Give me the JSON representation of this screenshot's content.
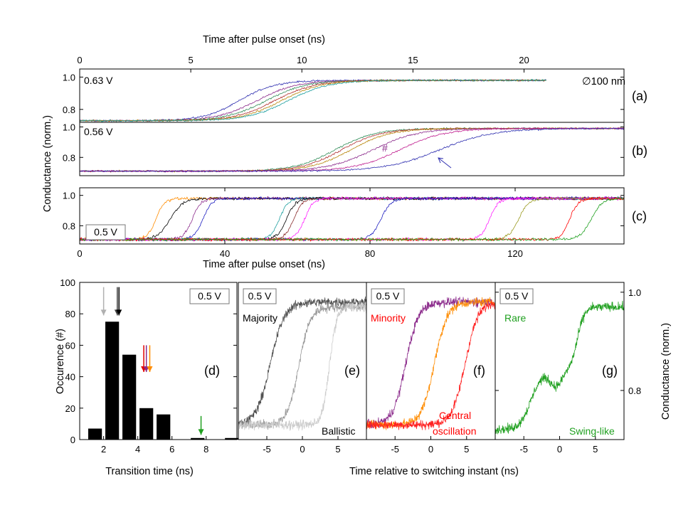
{
  "figure": {
    "top_axis_title": "Time after pulse onset (ns)",
    "shared_ylabel": "Conductance (norm.)",
    "right_ylabel": "Conductance (norm.)",
    "bottom_axis_title_c": "Time after pulse onset (ns)",
    "bottom_axis_title_d": "Transition time (ns)",
    "bottom_axis_title_efg": "Time relative to switching instant (ns)",
    "diameter_label": "∅100 nm",
    "marker_hash": "#"
  },
  "chart_data": [
    {
      "panel": "(a)",
      "type": "line",
      "voltage": "0.63 V",
      "x_ticks": [
        "0",
        "5",
        "10",
        "15",
        "20"
      ],
      "y_ticks": [
        "0.8",
        "1.0"
      ],
      "xlim": [
        0,
        24.5
      ],
      "ylim": [
        0.72,
        1.05
      ],
      "series": [
        {
          "color": "#3030b0",
          "start": 0.73,
          "end": 0.98,
          "t0": 7.2,
          "w": 0.8,
          "tend": 21
        },
        {
          "color": "#8b2a8b",
          "start": 0.73,
          "end": 0.98,
          "t0": 8.0,
          "w": 0.9,
          "tend": 21
        },
        {
          "color": "#2e8b57",
          "start": 0.73,
          "end": 0.98,
          "t0": 8.4,
          "w": 0.9,
          "tend": 21
        },
        {
          "color": "#b03030",
          "start": 0.73,
          "end": 0.98,
          "t0": 8.8,
          "w": 0.9,
          "tend": 21
        },
        {
          "color": "#b8860b",
          "start": 0.73,
          "end": 0.98,
          "t0": 9.1,
          "w": 0.9,
          "tend": 21
        },
        {
          "color": "#20a0a0",
          "start": 0.73,
          "end": 0.98,
          "t0": 9.4,
          "w": 0.9,
          "tend": 21
        }
      ]
    },
    {
      "panel": "(b)",
      "type": "line",
      "voltage": "0.56 V",
      "x_ticks": [],
      "y_ticks": [
        "0.8",
        "1.0"
      ],
      "xlim": [
        0,
        24.5
      ],
      "ylim": [
        0.68,
        1.03
      ],
      "series": [
        {
          "color": "#2e8b57",
          "start": 0.71,
          "end": 0.99,
          "t0": 11.5,
          "w": 0.9,
          "tend": 24.5
        },
        {
          "color": "#b03030",
          "start": 0.71,
          "end": 0.99,
          "t0": 11.8,
          "w": 0.9,
          "tend": 24.5
        },
        {
          "color": "#b8860b",
          "start": 0.71,
          "end": 0.99,
          "t0": 12.2,
          "w": 0.9,
          "tend": 24.5
        },
        {
          "color": "#8b2a8b",
          "start": 0.71,
          "end": 0.99,
          "t0": 13.2,
          "w": 1.0,
          "tend": 24.5
        },
        {
          "color": "#c02090",
          "start": 0.71,
          "end": 0.99,
          "t0": 14.4,
          "w": 1.0,
          "tend": 24.5
        },
        {
          "color": "#3030b0",
          "start": 0.71,
          "end": 0.99,
          "t0": 16.2,
          "w": 1.2,
          "tend": 24.5
        }
      ]
    },
    {
      "panel": "(c)",
      "type": "line",
      "voltage": "0.5 V",
      "x_ticks": [
        "0",
        "40",
        "80",
        "120"
      ],
      "y_ticks": [
        "0.8",
        "1.0"
      ],
      "xlim": [
        0,
        150
      ],
      "ylim": [
        0.68,
        1.05
      ],
      "series": [
        {
          "color": "#ff8c00",
          "start": 0.71,
          "end": 0.98,
          "t0": 21,
          "w": 1.2
        },
        {
          "color": "#000000",
          "start": 0.71,
          "end": 0.98,
          "t0": 25,
          "w": 1.8
        },
        {
          "color": "#8b2a8b",
          "start": 0.71,
          "end": 0.98,
          "t0": 31,
          "w": 1.2
        },
        {
          "color": "#2020c0",
          "start": 0.71,
          "end": 0.98,
          "t0": 34,
          "w": 1.2
        },
        {
          "color": "#20a0a0",
          "start": 0.71,
          "end": 0.98,
          "t0": 55,
          "w": 1.2
        },
        {
          "color": "#000000",
          "start": 0.71,
          "end": 0.98,
          "t0": 57,
          "w": 1.3
        },
        {
          "color": "#8b3030",
          "start": 0.71,
          "end": 0.98,
          "t0": 59,
          "w": 1.2
        },
        {
          "color": "#ff20ff",
          "start": 0.71,
          "end": 0.98,
          "t0": 62,
          "w": 1.2
        },
        {
          "color": "#2020c0",
          "start": 0.71,
          "end": 0.98,
          "t0": 83,
          "w": 1.4
        },
        {
          "color": "#ff20ff",
          "start": 0.71,
          "end": 0.98,
          "t0": 113,
          "w": 1.2
        },
        {
          "color": "#9a9a20",
          "start": 0.71,
          "end": 0.98,
          "t0": 121,
          "w": 1.4
        },
        {
          "color": "#ff0000",
          "start": 0.71,
          "end": 0.98,
          "t0": 135,
          "w": 1.2
        },
        {
          "color": "#20a020",
          "start": 0.71,
          "end": 0.98,
          "t0": 141,
          "w": 1.5
        }
      ]
    },
    {
      "panel": "(d)",
      "type": "bar",
      "voltage": "0.5 V",
      "ylabel": "Occurence (#)",
      "xlabel": "Transition time (ns)",
      "x_ticks": [
        "2",
        "4",
        "6",
        "8"
      ],
      "y_ticks": [
        "0",
        "20",
        "40",
        "60",
        "80",
        "100"
      ],
      "xlim": [
        0.6,
        9.8
      ],
      "ylim": [
        0,
        100
      ],
      "bin_width": 0.8,
      "bin_centers": [
        1.5,
        2.5,
        3.5,
        4.5,
        5.5,
        7.5,
        9.5
      ],
      "values": [
        7,
        75,
        54,
        20,
        16,
        1,
        1
      ],
      "arrows": [
        {
          "x": 2.0,
          "color": "#b0b0b0"
        },
        {
          "x": 2.8,
          "color": "#404040"
        },
        {
          "x": 2.9,
          "color": "#000000"
        },
        {
          "x": 4.35,
          "color": "#e00000"
        },
        {
          "x": 4.5,
          "color": "#8b2a8b"
        },
        {
          "x": 4.7,
          "color": "#ff8c00"
        },
        {
          "x": 7.7,
          "color": "#20a020"
        }
      ]
    },
    {
      "panel": "(e)",
      "type": "line",
      "voltage": "0.5 V",
      "labels": [
        "Majority",
        "Ballistic"
      ],
      "x_ticks": [
        "-5",
        "0",
        "5"
      ],
      "xlim": [
        -9,
        9
      ],
      "ylim": [
        0.7,
        1.02
      ],
      "series": [
        {
          "color": "#505050",
          "start": 0.73,
          "end": 0.98,
          "t0": -4.5,
          "w": 1.0
        },
        {
          "color": "#999999",
          "start": 0.73,
          "end": 0.97,
          "t0": -0.5,
          "w": 0.8
        },
        {
          "color": "#cccccc",
          "start": 0.73,
          "end": 0.97,
          "t0": 3.8,
          "w": 0.5
        }
      ]
    },
    {
      "panel": "(f)",
      "type": "line",
      "voltage": "0.5 V",
      "labels": [
        "Minority",
        "Central",
        "oscillation"
      ],
      "x_ticks": [
        "-5",
        "0",
        "5"
      ],
      "xlim": [
        -9,
        9
      ],
      "ylim": [
        0.7,
        1.02
      ],
      "series": [
        {
          "color": "#8b2a8b",
          "start": 0.73,
          "end": 0.98,
          "t0": -3.5,
          "w": 0.9
        },
        {
          "color": "#ff8c00",
          "start": 0.73,
          "end": 0.98,
          "t0": 0.5,
          "w": 0.9
        },
        {
          "color": "#ff2020",
          "start": 0.73,
          "end": 0.98,
          "t0": 4.8,
          "w": 0.9
        }
      ]
    },
    {
      "panel": "(g)",
      "type": "line",
      "voltage": "0.5 V",
      "labels": [
        "Rare",
        "Swing-like"
      ],
      "x_ticks": [
        "-5",
        "0",
        "5"
      ],
      "y_ticks": [
        "0.8",
        "1.0"
      ],
      "xlim": [
        -9,
        9
      ],
      "ylim": [
        0.7,
        1.02
      ],
      "series": [
        {
          "color": "#20a020",
          "start": 0.72,
          "end": 0.98,
          "t0": 0,
          "w": 0.6
        }
      ]
    }
  ]
}
